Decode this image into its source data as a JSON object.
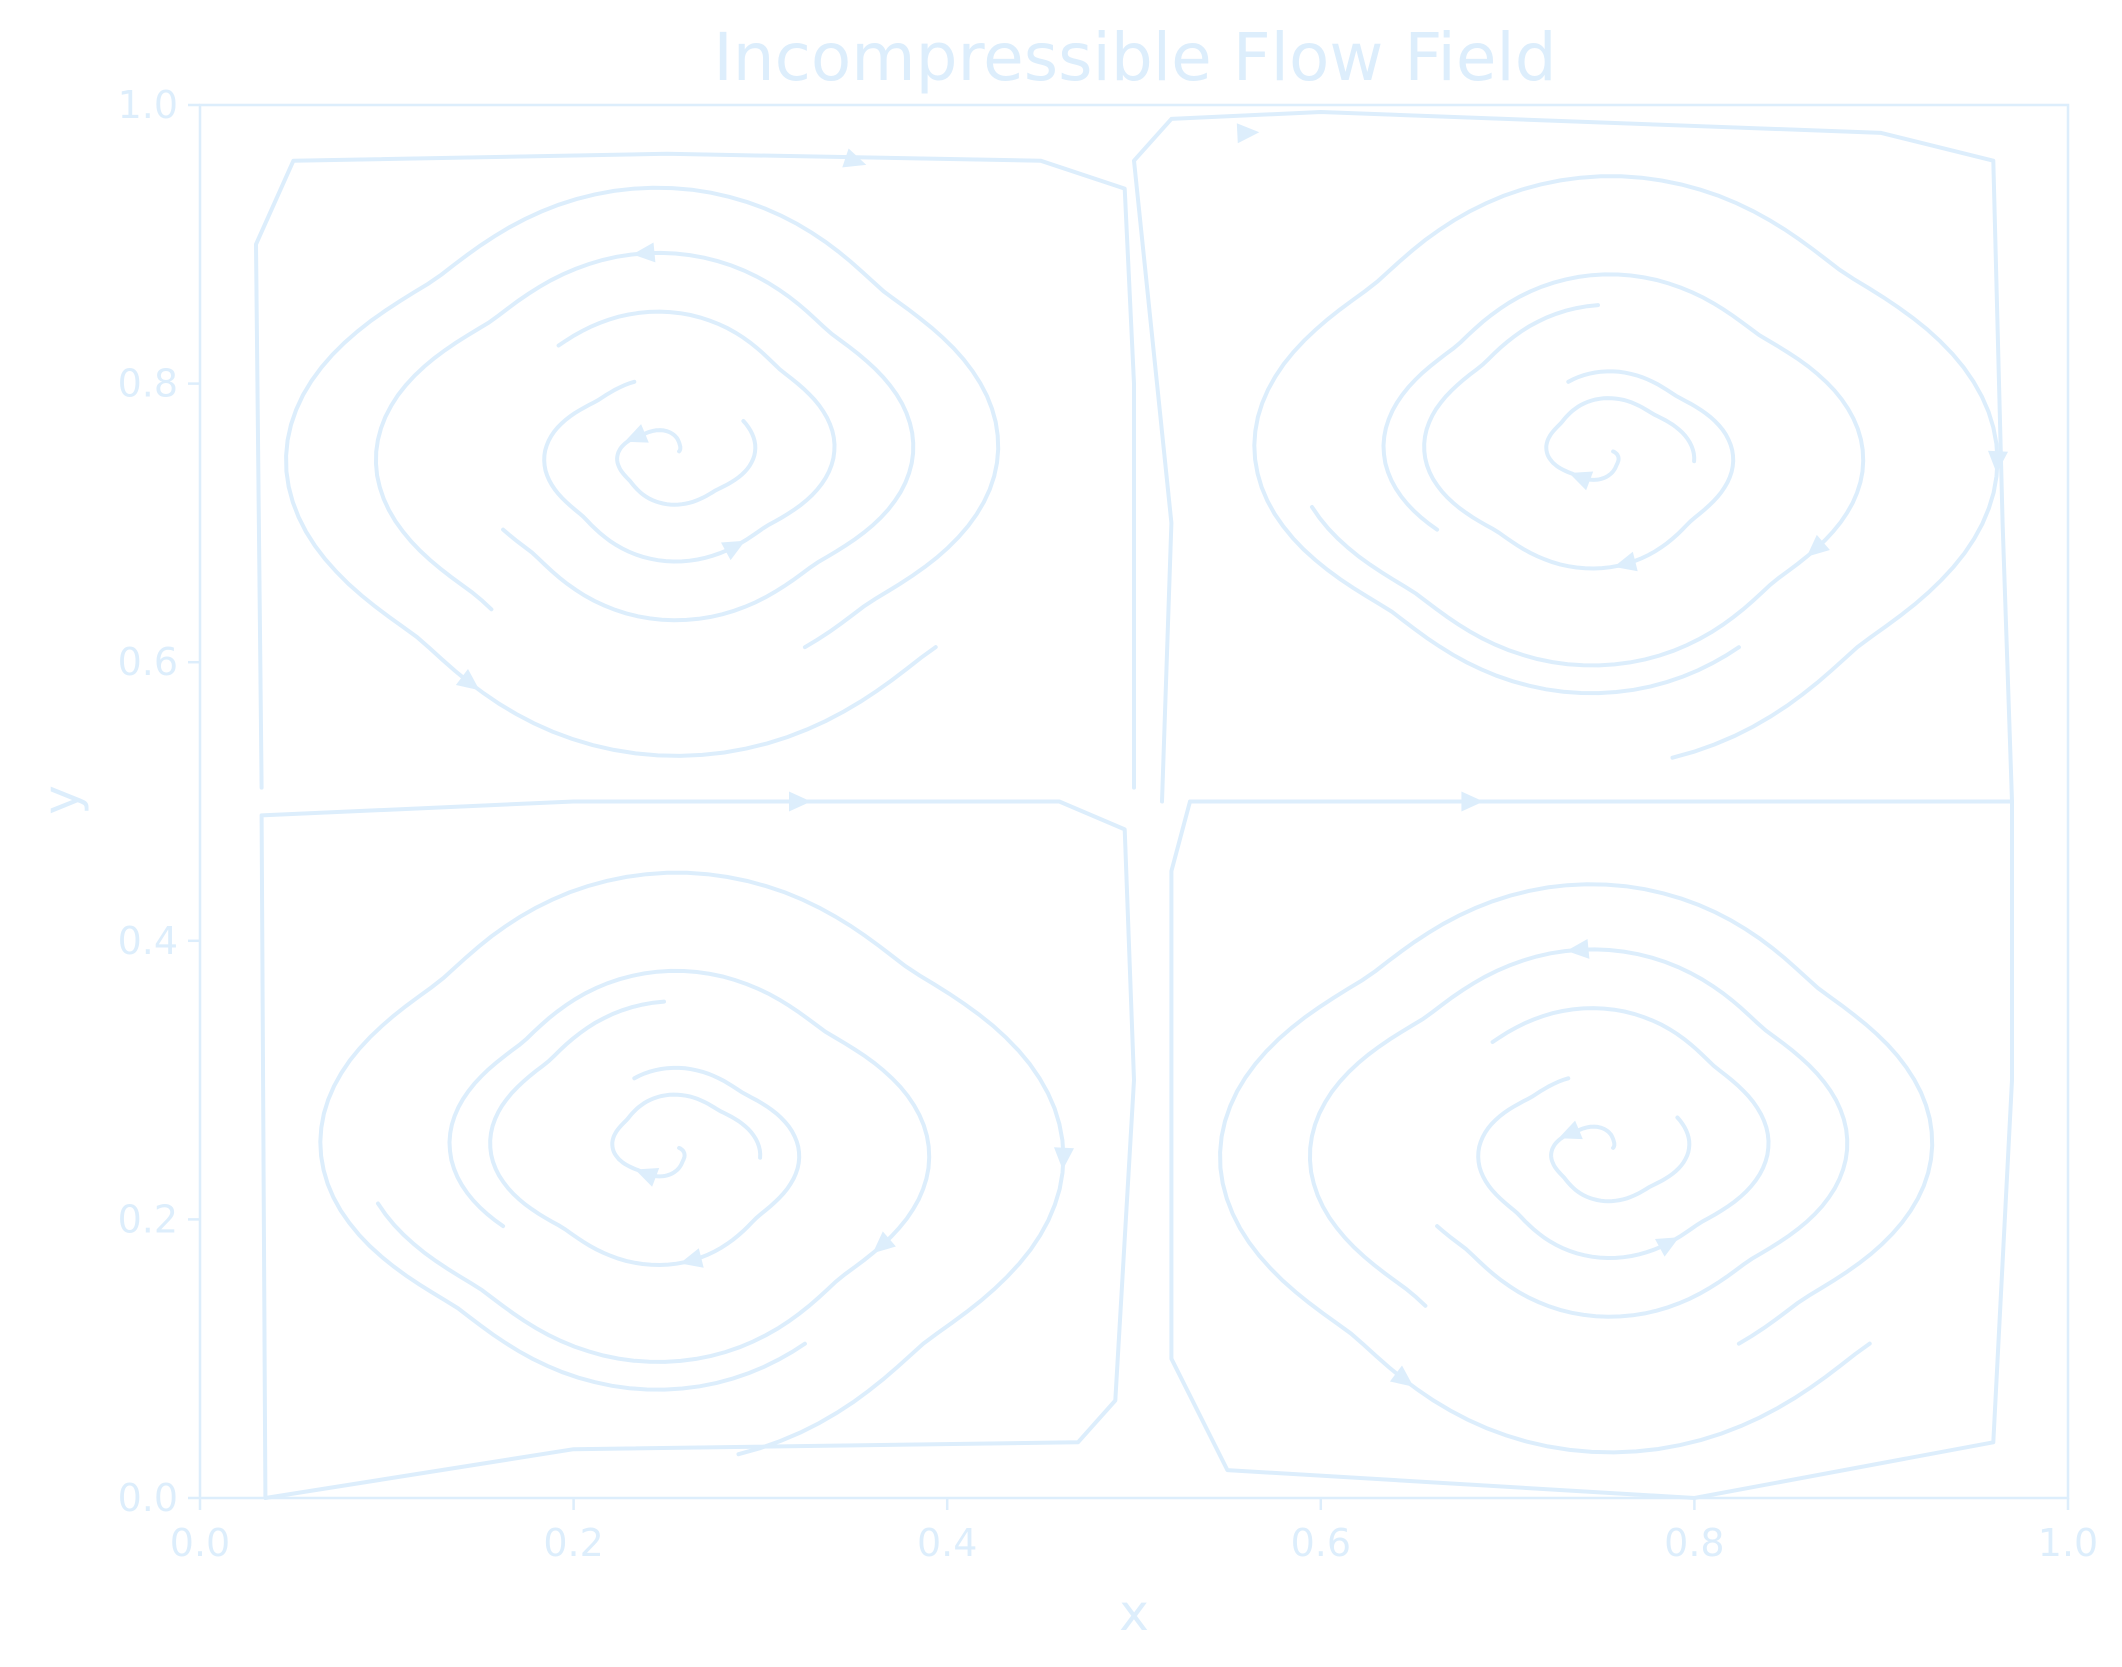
{
  "chart_data": {
    "type": "streamplot",
    "title": "Incompressible Flow Field",
    "xlabel": "x",
    "ylabel": "y",
    "xlim": [
      0.0,
      1.0
    ],
    "ylim": [
      0.0,
      1.0
    ],
    "xticks": [
      "0.0",
      "0.2",
      "0.4",
      "0.6",
      "0.8",
      "1.0"
    ],
    "yticks": [
      "0.0",
      "0.2",
      "0.4",
      "0.6",
      "0.8",
      "1.0"
    ],
    "xtick_values": [
      0.0,
      0.2,
      0.4,
      0.6,
      0.8,
      1.0
    ],
    "ytick_values": [
      0.0,
      0.2,
      0.4,
      0.6,
      0.8,
      1.0
    ],
    "grid": false,
    "legend": "none",
    "color": "#ddeefc",
    "vortices": [
      {
        "x": 0.25,
        "y": 0.75,
        "rotation": "counterclockwise"
      },
      {
        "x": 0.75,
        "y": 0.75,
        "rotation": "clockwise"
      },
      {
        "x": 0.25,
        "y": 0.25,
        "rotation": "clockwise"
      },
      {
        "x": 0.75,
        "y": 0.25,
        "rotation": "counterclockwise"
      }
    ],
    "separatrices": [
      {
        "points": [
          [
            0.035,
            0.0
          ],
          [
            0.033,
            0.49
          ],
          [
            0.2,
            0.5
          ],
          [
            0.46,
            0.5
          ],
          [
            0.495,
            0.48
          ],
          [
            0.5,
            0.3
          ],
          [
            0.49,
            0.07
          ],
          [
            0.47,
            0.04
          ],
          [
            0.2,
            0.035
          ],
          [
            0.035,
            0.0
          ]
        ],
        "arrow_at": [
          0.32,
          0.5
        ]
      },
      {
        "points": [
          [
            0.515,
            0.5
          ],
          [
            0.52,
            0.7
          ],
          [
            0.5,
            0.96
          ],
          [
            0.52,
            0.99
          ],
          [
            0.6,
            0.995
          ],
          [
            0.9,
            0.98
          ],
          [
            0.96,
            0.96
          ],
          [
            0.965,
            0.7
          ],
          [
            0.97,
            0.5
          ]
        ],
        "arrow_at": [
          0.56,
          0.98
        ]
      },
      {
        "points": [
          [
            0.53,
            0.5
          ],
          [
            0.68,
            0.5
          ],
          [
            0.97,
            0.5
          ],
          [
            0.97,
            0.3
          ],
          [
            0.96,
            0.04
          ],
          [
            0.8,
            0.0
          ],
          [
            0.55,
            0.02
          ],
          [
            0.52,
            0.1
          ],
          [
            0.52,
            0.45
          ],
          [
            0.53,
            0.5
          ]
        ],
        "arrow_at": [
          0.68,
          0.5
        ]
      },
      {
        "points": [
          [
            0.033,
            0.51
          ],
          [
            0.03,
            0.9
          ],
          [
            0.05,
            0.96
          ],
          [
            0.25,
            0.965
          ],
          [
            0.45,
            0.96
          ],
          [
            0.495,
            0.94
          ],
          [
            0.5,
            0.8
          ],
          [
            0.5,
            0.51
          ]
        ],
        "arrow_at": [
          0.35,
          0.96
        ]
      }
    ]
  }
}
